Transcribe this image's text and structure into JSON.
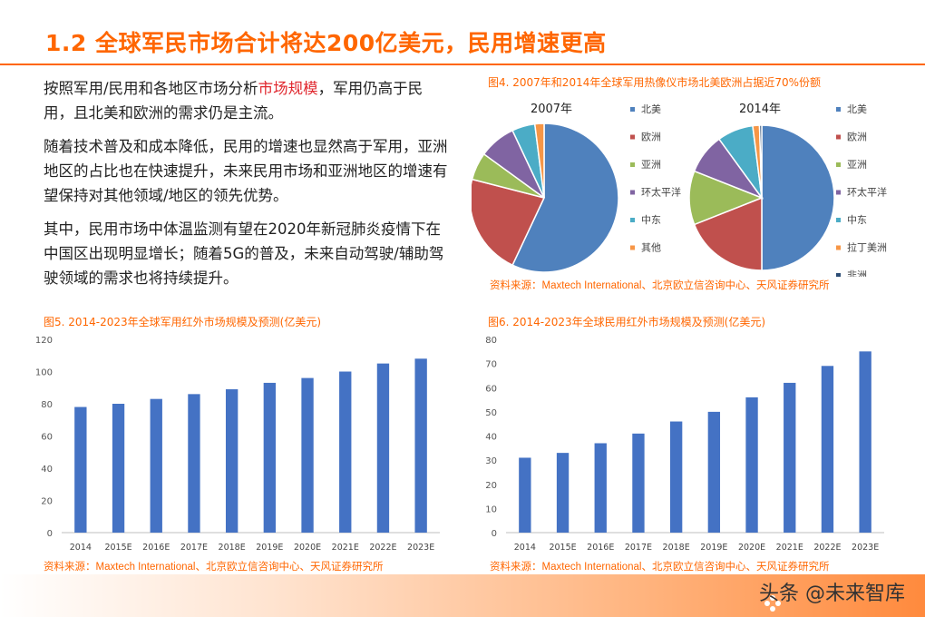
{
  "title": "1.2 全球军民市场合计将达200亿美元，民用增速更高",
  "paragraphs": {
    "p1_pre": "按照军用/民用和各地区市场分析",
    "p1_highlight": "市场规模",
    "p1_post": "，军用仍高于民用，且北美和欧洲的需求仍是主流。",
    "p2": "随着技术普及和成本降低，民用的增速也显然高于军用，亚洲地区的占比也在快速提升，未来民用市场和亚洲地区的增速有望保持对其他领域/地区的领先优势。",
    "p3": "其中，民用市场中体温监测有望在2020年新冠肺炎疫情下在中国区出现明显增长；随着5G的普及，未来自动驾驶/辅助驾驶领域的需求也将持续提升。"
  },
  "figures": {
    "fig4_title": "图4. 2007年和2014年全球军用热像仪市场北美欧洲占据近70%份额",
    "fig4_source": "资料来源：Maxtech International、北京欧立信咨询中心、天风证券研究所",
    "fig5_title": "图5. 2014-2023年全球军用红外市场规模及预测(亿美元)",
    "fig5_source": "资料来源：Maxtech International、北京欧立信咨询中心、天风证券研究所",
    "fig6_title": "图6. 2014-2023年全球民用红外市场规模及预测(亿美元)",
    "fig6_source": "资料来源：Maxtech International、北京欧立信咨询中心、天风证券研究所"
  },
  "watermark": "头条 @未来智库",
  "chart_data": [
    {
      "type": "pie",
      "title": "2007年",
      "categories": [
        "北美",
        "欧洲",
        "亚洲",
        "环太平洋",
        "中东",
        "其他"
      ],
      "values": [
        57,
        22,
        6,
        8,
        5,
        2
      ],
      "colors": [
        "#4f81bd",
        "#c0504d",
        "#9bbb59",
        "#8064a2",
        "#4bacc6",
        "#f79646"
      ],
      "legend": "right"
    },
    {
      "type": "pie",
      "title": "2014年",
      "categories": [
        "北美",
        "欧洲",
        "亚洲",
        "环太平洋",
        "中东",
        "拉丁美洲",
        "非洲"
      ],
      "values": [
        50,
        19,
        12,
        9,
        8,
        1.5,
        0.5
      ],
      "colors": [
        "#4f81bd",
        "#c0504d",
        "#9bbb59",
        "#8064a2",
        "#4bacc6",
        "#f79646",
        "#2c4d75"
      ],
      "legend": "right"
    },
    {
      "type": "bar",
      "categories": [
        "2014",
        "2015E",
        "2016E",
        "2017E",
        "2018E",
        "2019E",
        "2020E",
        "2021E",
        "2022E",
        "2023E"
      ],
      "values": [
        78,
        80,
        83,
        86,
        89,
        93,
        96,
        100,
        105,
        108
      ],
      "ylim": [
        0,
        120
      ],
      "yticks": [
        0,
        20,
        40,
        60,
        80,
        100,
        120
      ],
      "grid": false,
      "color": "#4472c4"
    },
    {
      "type": "bar",
      "categories": [
        "2014",
        "2015E",
        "2016E",
        "2017E",
        "2018E",
        "2019E",
        "2020E",
        "2021E",
        "2022E",
        "2023E"
      ],
      "values": [
        31,
        33,
        37,
        41,
        46,
        50,
        56,
        62,
        69,
        75
      ],
      "ylim": [
        0,
        80
      ],
      "yticks": [
        0,
        10,
        20,
        30,
        40,
        50,
        60,
        70,
        80
      ],
      "grid": false,
      "color": "#4472c4"
    }
  ]
}
